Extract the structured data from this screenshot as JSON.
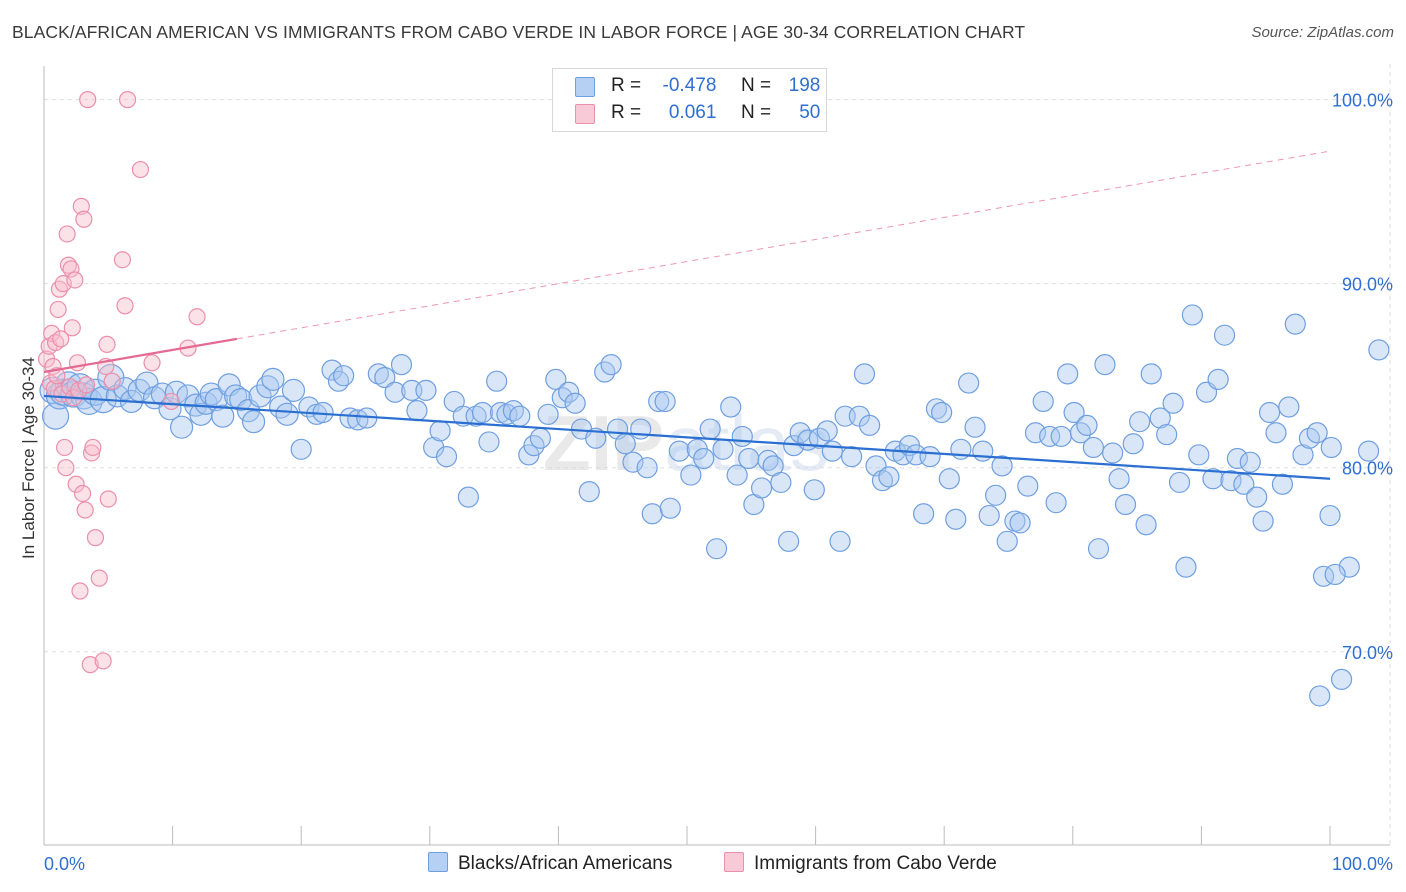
{
  "header": {
    "title": "BLACK/AFRICAN AMERICAN VS IMMIGRANTS FROM CABO VERDE IN LABOR FORCE | AGE 30-34 CORRELATION CHART",
    "source": "Source: ZipAtlas.com"
  },
  "legend": {
    "r_label": "R =",
    "n_label": "N =",
    "series1": {
      "r": "-0.478",
      "n": "198"
    },
    "series2": {
      "r": "0.061",
      "n": "50"
    }
  },
  "bottom_legend": {
    "series1": "Blacks/African Americans",
    "series2": "Immigrants from Cabo Verde"
  },
  "colors": {
    "blue_fill": "#a9c8f0",
    "blue_edge": "#6f9fe0",
    "blue_line": "#2a6fd1",
    "pink_fill": "#f6bccd",
    "pink_edge": "#eb8fab",
    "pink_line": "#e56a93",
    "axis_label": "#2f6fcf",
    "grid": "#dddddd"
  },
  "chart_data": {
    "type": "scatter",
    "title": "BLACK/AFRICAN AMERICAN VS IMMIGRANTS FROM CABO VERDE IN LABOR FORCE | AGE 30-34 CORRELATION CHART",
    "xlabel": "",
    "ylabel": "In Labor Force | Age 30-34",
    "xlim": [
      0,
      100
    ],
    "ylim": [
      59.5,
      101.5
    ],
    "x_tick_labels": [
      "0.0%",
      "100.0%"
    ],
    "y_ticks": [
      70,
      80,
      90,
      100
    ],
    "y_tick_labels": [
      "70.0%",
      "80.0%",
      "90.0%",
      "100.0%"
    ],
    "grid": true,
    "legend_position": "top-center",
    "watermark": "ZIPatlas",
    "series": [
      {
        "name": "Blacks/African Americans",
        "r": -0.478,
        "n": 198,
        "trend": {
          "x": [
            0,
            100
          ],
          "y": [
            83.9,
            79.4
          ]
        },
        "points": [
          [
            0.7,
            84.2
          ],
          [
            0.9,
            82.8
          ],
          [
            1.2,
            83.9
          ],
          [
            1.5,
            84.1
          ],
          [
            1.9,
            84.5
          ],
          [
            2.3,
            84.0
          ],
          [
            2.8,
            84.4
          ],
          [
            3.1,
            83.9
          ],
          [
            3.5,
            83.6
          ],
          [
            4.0,
            84.1
          ],
          [
            4.6,
            83.7
          ],
          [
            5.2,
            84.9
          ],
          [
            5.7,
            83.9
          ],
          [
            6.3,
            84.3
          ],
          [
            6.8,
            83.6
          ],
          [
            7.4,
            84.2
          ],
          [
            8.0,
            84.6
          ],
          [
            8.6,
            83.8
          ],
          [
            9.2,
            84.0
          ],
          [
            9.8,
            83.2
          ],
          [
            10.3,
            84.1
          ],
          [
            10.7,
            82.2
          ],
          [
            11.2,
            83.9
          ],
          [
            11.8,
            83.4
          ],
          [
            12.2,
            82.9
          ],
          [
            12.6,
            83.5
          ],
          [
            13.0,
            84.0
          ],
          [
            13.4,
            83.7
          ],
          [
            13.9,
            82.8
          ],
          [
            14.4,
            84.5
          ],
          [
            14.9,
            83.9
          ],
          [
            15.3,
            83.7
          ],
          [
            15.9,
            83.1
          ],
          [
            16.3,
            82.5
          ],
          [
            16.8,
            83.9
          ],
          [
            17.4,
            84.4
          ],
          [
            17.8,
            84.8
          ],
          [
            18.4,
            83.3
          ],
          [
            18.9,
            82.9
          ],
          [
            19.4,
            84.2
          ],
          [
            20.0,
            81.0
          ],
          [
            20.6,
            83.3
          ],
          [
            21.2,
            82.9
          ],
          [
            21.7,
            83.0
          ],
          [
            22.4,
            85.3
          ],
          [
            22.9,
            84.7
          ],
          [
            23.3,
            85.0
          ],
          [
            23.8,
            82.7
          ],
          [
            24.4,
            82.6
          ],
          [
            25.1,
            82.7
          ],
          [
            26.0,
            85.1
          ],
          [
            26.5,
            84.9
          ],
          [
            27.3,
            84.1
          ],
          [
            27.8,
            85.6
          ],
          [
            28.6,
            84.2
          ],
          [
            29.0,
            83.1
          ],
          [
            29.7,
            84.2
          ],
          [
            30.3,
            81.1
          ],
          [
            30.8,
            82.0
          ],
          [
            31.3,
            80.6
          ],
          [
            31.9,
            83.6
          ],
          [
            32.6,
            82.8
          ],
          [
            33.0,
            78.4
          ],
          [
            33.6,
            82.8
          ],
          [
            34.1,
            83.0
          ],
          [
            34.6,
            81.4
          ],
          [
            35.2,
            84.7
          ],
          [
            35.5,
            83.0
          ],
          [
            36.0,
            82.9
          ],
          [
            36.5,
            83.1
          ],
          [
            37.0,
            82.8
          ],
          [
            37.7,
            80.7
          ],
          [
            38.1,
            81.2
          ],
          [
            38.6,
            81.6
          ],
          [
            39.2,
            82.9
          ],
          [
            39.8,
            84.8
          ],
          [
            40.3,
            83.8
          ],
          [
            40.8,
            84.1
          ],
          [
            41.3,
            83.5
          ],
          [
            41.8,
            82.1
          ],
          [
            42.4,
            78.7
          ],
          [
            42.9,
            81.6
          ],
          [
            43.6,
            85.2
          ],
          [
            44.1,
            85.6
          ],
          [
            44.6,
            82.1
          ],
          [
            45.2,
            81.3
          ],
          [
            45.8,
            80.3
          ],
          [
            46.4,
            82.1
          ],
          [
            46.9,
            80.0
          ],
          [
            47.3,
            77.5
          ],
          [
            47.8,
            83.6
          ],
          [
            48.3,
            83.6
          ],
          [
            48.7,
            77.8
          ],
          [
            49.4,
            80.9
          ],
          [
            50.3,
            79.6
          ],
          [
            50.8,
            81.0
          ],
          [
            51.3,
            80.5
          ],
          [
            51.8,
            82.1
          ],
          [
            52.3,
            75.6
          ],
          [
            52.8,
            81.0
          ],
          [
            53.4,
            83.3
          ],
          [
            53.9,
            79.6
          ],
          [
            54.3,
            81.7
          ],
          [
            54.8,
            80.5
          ],
          [
            55.2,
            78.0
          ],
          [
            55.8,
            78.9
          ],
          [
            56.3,
            80.4
          ],
          [
            56.7,
            80.1
          ],
          [
            57.3,
            79.2
          ],
          [
            57.9,
            76.0
          ],
          [
            58.3,
            81.2
          ],
          [
            58.8,
            81.9
          ],
          [
            59.4,
            81.5
          ],
          [
            59.9,
            78.8
          ],
          [
            60.3,
            81.6
          ],
          [
            60.9,
            82.0
          ],
          [
            61.3,
            80.9
          ],
          [
            61.9,
            76.0
          ],
          [
            62.3,
            82.8
          ],
          [
            62.8,
            80.6
          ],
          [
            63.4,
            82.8
          ],
          [
            63.8,
            85.1
          ],
          [
            64.2,
            82.3
          ],
          [
            64.7,
            80.1
          ],
          [
            65.2,
            79.3
          ],
          [
            65.7,
            79.5
          ],
          [
            66.2,
            80.9
          ],
          [
            66.8,
            80.7
          ],
          [
            67.3,
            81.2
          ],
          [
            67.8,
            80.7
          ],
          [
            68.4,
            77.5
          ],
          [
            68.9,
            80.6
          ],
          [
            69.4,
            83.2
          ],
          [
            69.8,
            83.0
          ],
          [
            70.4,
            79.4
          ],
          [
            70.9,
            77.2
          ],
          [
            71.3,
            81.0
          ],
          [
            71.9,
            84.6
          ],
          [
            72.4,
            82.2
          ],
          [
            73.0,
            80.9
          ],
          [
            73.5,
            77.4
          ],
          [
            74.0,
            78.5
          ],
          [
            74.5,
            80.1
          ],
          [
            74.9,
            76.0
          ],
          [
            75.5,
            77.1
          ],
          [
            75.9,
            77.0
          ],
          [
            76.5,
            79.0
          ],
          [
            77.1,
            81.9
          ],
          [
            77.7,
            83.6
          ],
          [
            78.2,
            81.7
          ],
          [
            78.7,
            78.1
          ],
          [
            79.1,
            81.7
          ],
          [
            79.6,
            85.1
          ],
          [
            80.1,
            83.0
          ],
          [
            80.6,
            81.9
          ],
          [
            81.1,
            82.3
          ],
          [
            81.6,
            81.1
          ],
          [
            82.0,
            75.6
          ],
          [
            82.5,
            85.6
          ],
          [
            83.1,
            80.8
          ],
          [
            83.6,
            79.4
          ],
          [
            84.1,
            78.0
          ],
          [
            84.7,
            81.3
          ],
          [
            85.2,
            82.5
          ],
          [
            85.7,
            76.9
          ],
          [
            86.1,
            85.1
          ],
          [
            86.8,
            82.7
          ],
          [
            87.3,
            81.8
          ],
          [
            87.8,
            83.5
          ],
          [
            88.3,
            79.2
          ],
          [
            88.8,
            74.6
          ],
          [
            89.3,
            88.3
          ],
          [
            89.8,
            80.7
          ],
          [
            90.4,
            84.1
          ],
          [
            90.9,
            79.4
          ],
          [
            91.3,
            84.8
          ],
          [
            91.8,
            87.2
          ],
          [
            92.3,
            79.3
          ],
          [
            92.8,
            80.5
          ],
          [
            93.3,
            79.1
          ],
          [
            93.8,
            80.3
          ],
          [
            94.3,
            78.4
          ],
          [
            94.8,
            77.1
          ],
          [
            95.3,
            83.0
          ],
          [
            95.8,
            81.9
          ],
          [
            96.3,
            79.1
          ],
          [
            96.8,
            83.3
          ],
          [
            97.3,
            87.8
          ],
          [
            97.9,
            80.7
          ],
          [
            98.4,
            81.6
          ],
          [
            99.0,
            81.9
          ],
          [
            99.5,
            74.1
          ],
          [
            100.0,
            77.4
          ],
          [
            99.2,
            67.6
          ],
          [
            100.9,
            68.5
          ],
          [
            101.5,
            74.6
          ],
          [
            100.4,
            74.2
          ],
          [
            100.1,
            81.1
          ],
          [
            103.0,
            80.9
          ],
          [
            103.8,
            86.4
          ]
        ]
      },
      {
        "name": "Immigrants from Cabo Verde",
        "r": 0.061,
        "n": 50,
        "trend": {
          "x": [
            0,
            15
          ],
          "y": [
            85.2,
            87.0
          ]
        },
        "points": [
          [
            0.2,
            85.9
          ],
          [
            0.4,
            86.6
          ],
          [
            0.5,
            84.6
          ],
          [
            0.6,
            87.3
          ],
          [
            0.7,
            85.5
          ],
          [
            0.8,
            84.3
          ],
          [
            0.9,
            86.8
          ],
          [
            1.0,
            85.0
          ],
          [
            1.1,
            88.6
          ],
          [
            1.2,
            89.7
          ],
          [
            1.3,
            87.0
          ],
          [
            1.4,
            84.0
          ],
          [
            1.5,
            90.0
          ],
          [
            1.6,
            81.1
          ],
          [
            1.7,
            80.0
          ],
          [
            1.8,
            92.7
          ],
          [
            1.9,
            91.0
          ],
          [
            2.0,
            84.4
          ],
          [
            2.1,
            90.8
          ],
          [
            2.2,
            87.6
          ],
          [
            2.3,
            83.8
          ],
          [
            2.4,
            90.2
          ],
          [
            2.5,
            79.1
          ],
          [
            2.6,
            85.7
          ],
          [
            2.7,
            84.2
          ],
          [
            2.8,
            73.3
          ],
          [
            2.9,
            94.2
          ],
          [
            3.0,
            78.6
          ],
          [
            3.1,
            93.5
          ],
          [
            3.2,
            77.7
          ],
          [
            3.3,
            84.5
          ],
          [
            3.4,
            100.0
          ],
          [
            3.6,
            69.3
          ],
          [
            3.7,
            80.8
          ],
          [
            3.8,
            81.1
          ],
          [
            4.0,
            76.2
          ],
          [
            4.3,
            74.0
          ],
          [
            4.6,
            69.5
          ],
          [
            4.8,
            85.5
          ],
          [
            4.9,
            86.7
          ],
          [
            5.0,
            78.3
          ],
          [
            6.1,
            91.3
          ],
          [
            6.3,
            88.8
          ],
          [
            6.5,
            100.0
          ],
          [
            7.5,
            96.2
          ],
          [
            8.4,
            85.7
          ],
          [
            9.9,
            83.6
          ],
          [
            11.2,
            86.5
          ],
          [
            11.9,
            88.2
          ],
          [
            5.3,
            84.7
          ]
        ]
      }
    ]
  }
}
